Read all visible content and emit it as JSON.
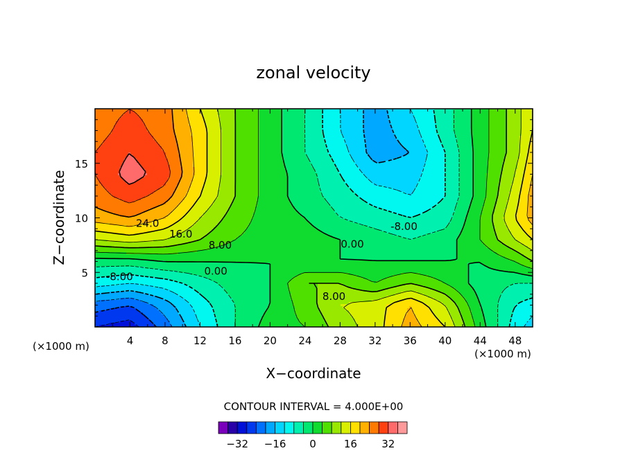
{
  "chart_data": {
    "type": "heatmap",
    "title": "zonal velocity",
    "xlabel": "X−coordinate",
    "ylabel": "Z−coordinate",
    "x_unit_label": "(×1000 m)",
    "x_unit_label_right": "(×1000 m)",
    "xlim": [
      0,
      50
    ],
    "ylim": [
      0,
      20
    ],
    "x_ticks": [
      4,
      8,
      12,
      16,
      20,
      24,
      28,
      32,
      36,
      40,
      44,
      48
    ],
    "y_ticks": [
      5,
      10,
      15
    ],
    "contour_interval_text": "CONTOUR INTERVAL = 4.000E+00",
    "contour_interval": 4.0,
    "contour_labels": [
      {
        "text": "24.0",
        "x": 6,
        "z": 9.5
      },
      {
        "text": "16.0",
        "x": 9.8,
        "z": 8.5
      },
      {
        "text": "8.00",
        "x": 14.3,
        "z": 7.5
      },
      {
        "text": "0.00",
        "x": 13.8,
        "z": 5.1
      },
      {
        "text": "-8.00",
        "x": 2.8,
        "z": 4.6
      },
      {
        "text": "0.00",
        "x": 29.4,
        "z": 7.6
      },
      {
        "text": "8.00",
        "x": 27.3,
        "z": 2.8
      },
      {
        "text": "-8.00",
        "x": 35.3,
        "z": 9.2
      }
    ],
    "colorbar": {
      "levels": [
        -40,
        -36,
        -32,
        -28,
        -24,
        -20,
        -16,
        -12,
        -8,
        -4,
        0,
        4,
        8,
        12,
        16,
        20,
        24,
        28,
        32,
        36
      ],
      "colors": [
        "#7a00bb",
        "#2a00a8",
        "#0010d8",
        "#0038f0",
        "#0070ff",
        "#00a8ff",
        "#00d6ff",
        "#00f8f0",
        "#00f0b0",
        "#00e870",
        "#10dc30",
        "#50e000",
        "#98e800",
        "#d8f000",
        "#ffe000",
        "#ffb000",
        "#ff7a00",
        "#ff4010",
        "#ff6a6a",
        "#ff9a9a"
      ],
      "tick_labels": [
        "−32",
        "−16",
        "0",
        "16",
        "32"
      ],
      "tick_values": [
        -32,
        -16,
        0,
        16,
        32
      ]
    },
    "field_description_nodes": {
      "x": [
        0,
        4,
        8,
        12,
        16,
        20,
        24,
        28,
        32,
        36,
        40,
        44,
        48,
        50
      ],
      "z": [
        0,
        2,
        4,
        6,
        8,
        10,
        12,
        14,
        16,
        18,
        20
      ],
      "u": [
        [
          -28,
          -30,
          -22,
          -12,
          -4,
          2,
          4,
          10,
          14,
          22,
          16,
          2,
          -10,
          -14
        ],
        [
          -22,
          -24,
          -18,
          -10,
          -4,
          0,
          6,
          12,
          14,
          20,
          12,
          0,
          -8,
          -10
        ],
        [
          -10,
          -12,
          -10,
          -6,
          -2,
          0,
          8,
          8,
          4,
          8,
          4,
          -2,
          -4,
          -4
        ],
        [
          -2,
          -2,
          0,
          0,
          0,
          0,
          0,
          0,
          0,
          0,
          0,
          0,
          4,
          8
        ],
        [
          12,
          14,
          12,
          8,
          4,
          2,
          2,
          0,
          -2,
          -4,
          -2,
          4,
          12,
          16
        ],
        [
          22,
          24,
          20,
          12,
          6,
          2,
          0,
          -4,
          -6,
          -8,
          -6,
          4,
          16,
          22
        ],
        [
          26,
          30,
          26,
          16,
          8,
          2,
          -2,
          -6,
          -10,
          -12,
          -8,
          2,
          14,
          22
        ],
        [
          28,
          34,
          30,
          18,
          8,
          2,
          -2,
          -8,
          -14,
          -14,
          -8,
          2,
          12,
          20
        ],
        [
          28,
          32,
          28,
          18,
          8,
          2,
          -4,
          -10,
          -18,
          -16,
          -8,
          2,
          10,
          18
        ],
        [
          26,
          30,
          26,
          18,
          8,
          2,
          -4,
          -12,
          -18,
          -14,
          -6,
          2,
          10,
          16
        ],
        [
          26,
          28,
          26,
          16,
          8,
          2,
          -4,
          -12,
          -18,
          -12,
          -6,
          2,
          10,
          16
        ]
      ]
    }
  }
}
